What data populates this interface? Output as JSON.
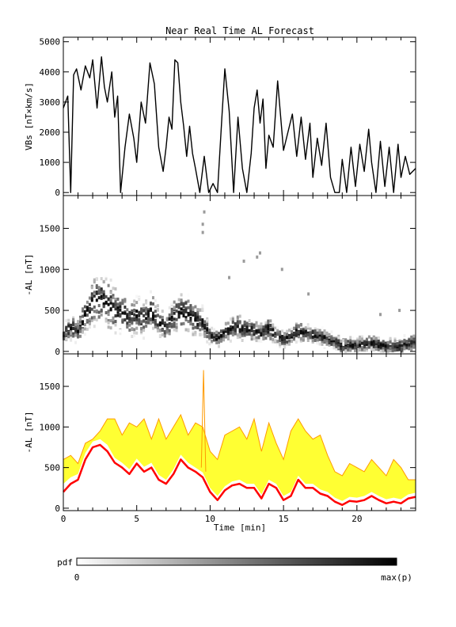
{
  "title": "Near Real Time AL Forecast",
  "x_axis_label": "Time [min]",
  "colorbar": {
    "label": "pdf",
    "min_label": "0",
    "max_label": "max(p)"
  },
  "chart_data": [
    {
      "type": "line",
      "panel": "VBs",
      "ylabel": "VBs [nT×km/s]",
      "xlim": [
        0,
        24
      ],
      "ylim": [
        -100,
        5150
      ],
      "yticks": [
        0,
        1000,
        2000,
        3000,
        4000,
        5000
      ],
      "xticks": [
        0,
        5,
        10,
        15,
        20
      ],
      "color": "#000000",
      "x": [
        0,
        0.3,
        0.5,
        0.7,
        0.9,
        1.2,
        1.5,
        1.8,
        2,
        2.3,
        2.6,
        2.8,
        3,
        3.3,
        3.5,
        3.7,
        3.9,
        4.2,
        4.5,
        4.8,
        5,
        5.3,
        5.6,
        5.9,
        6.2,
        6.5,
        6.8,
        7,
        7.2,
        7.4,
        7.6,
        7.8,
        8,
        8.2,
        8.4,
        8.6,
        8.8,
        9,
        9.3,
        9.6,
        9.9,
        10.2,
        10.5,
        10.8,
        11,
        11.3,
        11.6,
        11.9,
        12.2,
        12.5,
        12.8,
        13,
        13.2,
        13.4,
        13.6,
        13.8,
        14,
        14.3,
        14.6,
        15,
        15.3,
        15.6,
        15.9,
        16.2,
        16.5,
        16.8,
        17,
        17.3,
        17.6,
        17.9,
        18.2,
        18.5,
        18.8,
        19,
        19.3,
        19.6,
        19.9,
        20.2,
        20.5,
        20.8,
        21,
        21.3,
        21.6,
        21.9,
        22.2,
        22.5,
        22.8,
        23,
        23.3,
        23.6,
        24
      ],
      "y": [
        2800,
        3200,
        0,
        3900,
        4100,
        3400,
        4200,
        3800,
        4400,
        2800,
        4500,
        3500,
        3000,
        4000,
        2500,
        3200,
        0,
        1500,
        2600,
        1800,
        1000,
        3000,
        2300,
        4300,
        3600,
        1500,
        700,
        1500,
        2500,
        2100,
        4400,
        4300,
        3000,
        2200,
        1200,
        2200,
        1300,
        800,
        0,
        1200,
        0,
        300,
        0,
        2500,
        4100,
        2700,
        0,
        2500,
        800,
        0,
        1300,
        2800,
        3400,
        2300,
        3100,
        800,
        1900,
        1500,
        3700,
        1400,
        2000,
        2600,
        1200,
        2500,
        1100,
        2300,
        500,
        1800,
        900,
        2300,
        500,
        0,
        0,
        1100,
        0,
        1500,
        200,
        1600,
        700,
        2100,
        1000,
        0,
        1700,
        200,
        1500,
        0,
        1600,
        500,
        1200,
        600,
        800
      ]
    },
    {
      "type": "heatmap",
      "panel": "-AL pdf",
      "ylabel": "-AL [nT]",
      "xlim": [
        0,
        24
      ],
      "ylim": [
        -30,
        1900
      ],
      "yticks": [
        0,
        500,
        1000,
        1500
      ],
      "xticks": [
        0,
        5,
        10,
        15,
        20
      ],
      "colormap": "white to black (pdf 0 to max(p))",
      "center": {
        "x": [
          0,
          0.5,
          1,
          1.5,
          2,
          2.5,
          3,
          3.5,
          4,
          4.5,
          5,
          5.5,
          6,
          6.5,
          7,
          7.5,
          8,
          8.5,
          9,
          9.5,
          10,
          10.5,
          11,
          11.5,
          12,
          12.5,
          13,
          13.5,
          14,
          14.5,
          15,
          15.5,
          16,
          16.5,
          17,
          17.5,
          18,
          18.5,
          19,
          19.5,
          20,
          20.5,
          21,
          21.5,
          22,
          22.5,
          23,
          23.5,
          24
        ],
        "y": [
          200,
          300,
          250,
          450,
          600,
          650,
          600,
          500,
          480,
          400,
          450,
          400,
          480,
          350,
          300,
          420,
          500,
          450,
          400,
          350,
          200,
          150,
          230,
          280,
          300,
          260,
          250,
          220,
          280,
          200,
          150,
          180,
          250,
          220,
          200,
          180,
          150,
          120,
          60,
          80,
          70,
          90,
          100,
          80,
          60,
          70,
          60,
          100,
          120
        ]
      },
      "outliers": [
        [
          9.5,
          1450
        ],
        [
          9.5,
          1550
        ],
        [
          9.6,
          1700
        ],
        [
          13.2,
          1150
        ],
        [
          13.4,
          1200
        ],
        [
          12.3,
          1100
        ],
        [
          14.9,
          1000
        ],
        [
          11.3,
          900
        ],
        [
          16.7,
          700
        ],
        [
          21.6,
          450
        ],
        [
          22.9,
          500
        ]
      ]
    },
    {
      "type": "area",
      "panel": "-AL forecast",
      "ylabel": "-AL [nT]",
      "xlim": [
        0,
        24
      ],
      "ylim": [
        -30,
        1900
      ],
      "yticks": [
        0,
        500,
        1000,
        1500
      ],
      "xticks": [
        0,
        5,
        10,
        15,
        20
      ],
      "colors": {
        "band": "#ffff33",
        "band_edge": "#ff9900",
        "median": "#ff0000"
      },
      "x": [
        0,
        0.5,
        1,
        1.5,
        2,
        2.5,
        3,
        3.5,
        4,
        4.5,
        5,
        5.5,
        6,
        6.5,
        7,
        7.5,
        8,
        8.5,
        9,
        9.5,
        10,
        10.5,
        11,
        11.5,
        12,
        12.5,
        13,
        13.5,
        14,
        14.5,
        15,
        15.5,
        16,
        16.5,
        17,
        17.5,
        18,
        18.5,
        19,
        19.5,
        20,
        20.5,
        21,
        21.5,
        22,
        22.5,
        23,
        23.5,
        24
      ],
      "median": [
        200,
        300,
        350,
        600,
        750,
        780,
        700,
        560,
        500,
        420,
        550,
        450,
        500,
        350,
        300,
        420,
        600,
        500,
        450,
        380,
        200,
        100,
        220,
        280,
        300,
        250,
        250,
        120,
        300,
        250,
        100,
        150,
        350,
        250,
        250,
        180,
        150,
        80,
        40,
        90,
        80,
        100,
        150,
        100,
        60,
        80,
        60,
        120,
        140
      ],
      "upper": [
        600,
        650,
        550,
        800,
        850,
        950,
        1100,
        1100,
        900,
        1050,
        1000,
        1100,
        850,
        1100,
        850,
        1000,
        1150,
        900,
        1050,
        1000,
        700,
        600,
        900,
        950,
        1000,
        850,
        1100,
        700,
        1050,
        800,
        600,
        950,
        1100,
        950,
        850,
        900,
        650,
        450,
        400,
        550,
        500,
        450,
        600,
        500,
        400,
        600,
        500,
        350,
        350
      ],
      "lower": [
        300,
        380,
        420,
        680,
        820,
        850,
        780,
        620,
        560,
        480,
        610,
        510,
        560,
        410,
        350,
        480,
        660,
        560,
        500,
        440,
        250,
        150,
        270,
        330,
        350,
        300,
        300,
        170,
        350,
        300,
        150,
        200,
        400,
        300,
        300,
        230,
        200,
        130,
        90,
        140,
        130,
        150,
        200,
        150,
        110,
        130,
        110,
        170,
        190
      ],
      "spike": {
        "x": 9.55,
        "y": 1700
      }
    }
  ]
}
